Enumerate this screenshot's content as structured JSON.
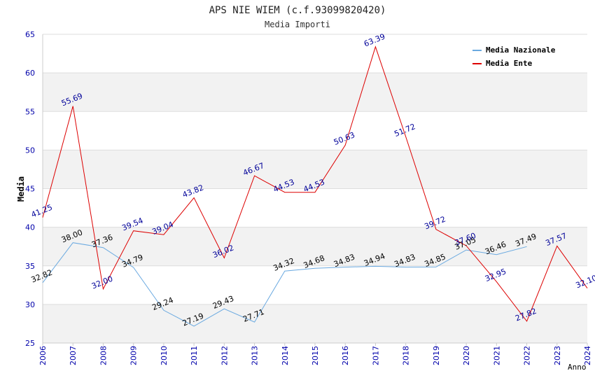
{
  "chart_data": {
    "type": "line",
    "title": "APS NIE WIEM (c.f.93099820420)",
    "subtitle": "Media Importi",
    "xlabel": "Anno",
    "ylabel": "Media",
    "ylim": [
      25,
      65
    ],
    "yticks": [
      25,
      30,
      35,
      40,
      45,
      50,
      55,
      60,
      65
    ],
    "x": [
      2006,
      2007,
      2008,
      2009,
      2010,
      2011,
      2012,
      2013,
      2014,
      2015,
      2016,
      2017,
      2018,
      2019,
      2020,
      2021,
      2022,
      2023,
      2024
    ],
    "legend_position": "top-right",
    "grid": "horizontal bands",
    "series": [
      {
        "name": "Media Nazionale",
        "color": "#6aa9e0",
        "label_color": "#000000",
        "x": [
          2006,
          2007,
          2008,
          2009,
          2010,
          2011,
          2012,
          2013,
          2014,
          2015,
          2016,
          2017,
          2018,
          2019,
          2020,
          2021,
          2022
        ],
        "values": [
          32.82,
          38.0,
          37.36,
          34.79,
          29.24,
          27.19,
          29.43,
          27.71,
          34.32,
          34.68,
          34.83,
          34.94,
          34.83,
          34.85,
          37.05,
          36.46,
          37.49
        ],
        "labels": [
          "32.82",
          "38.00",
          "37.36",
          "34.79",
          "29.24",
          "27.19",
          "29.43",
          "27.71",
          "34.32",
          "34.68",
          "34.83",
          "34.94",
          "34.83",
          "34.85",
          "37.05",
          "36.46",
          "37.49"
        ]
      },
      {
        "name": "Media Ente",
        "color": "#dd0000",
        "label_color": "#000099",
        "x": [
          2006,
          2007,
          2008,
          2009,
          2010,
          2011,
          2012,
          2013,
          2014,
          2015,
          2016,
          2017,
          2018,
          2019,
          2020,
          2021,
          2022,
          2023,
          2024
        ],
        "values": [
          41.25,
          55.69,
          32.0,
          39.54,
          39.04,
          43.82,
          36.02,
          46.67,
          44.53,
          44.53,
          50.63,
          63.39,
          51.72,
          39.72,
          37.6,
          32.95,
          27.82,
          37.57,
          32.1
        ],
        "labels": [
          "41.25",
          "55.69",
          "32.00",
          "39.54",
          "39.04",
          "43.82",
          "36.02",
          "46.67",
          "44.53",
          "44.53",
          "50.63",
          "63.39",
          "51.72",
          "39.72",
          "37.60",
          "32.95",
          "27.82",
          "37.57",
          "32.10"
        ]
      }
    ]
  }
}
